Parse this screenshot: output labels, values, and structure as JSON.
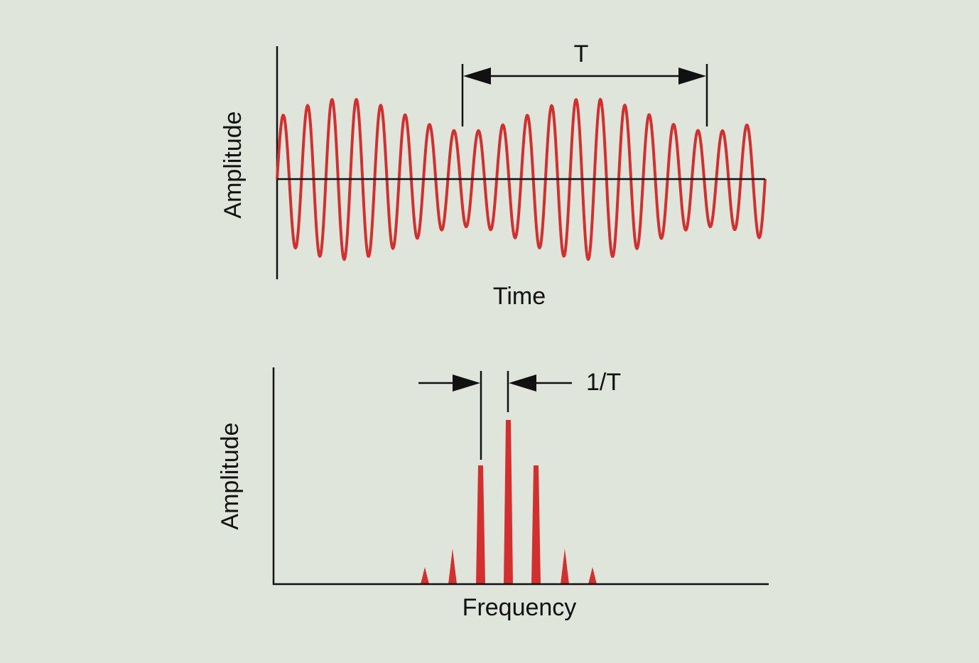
{
  "top_panel": {
    "y_label": "Amplitude",
    "x_label": "Time",
    "period_label": "T"
  },
  "bottom_panel": {
    "y_label": "Amplitude",
    "x_label": "Frequency",
    "spacing_label": "1/T"
  }
}
